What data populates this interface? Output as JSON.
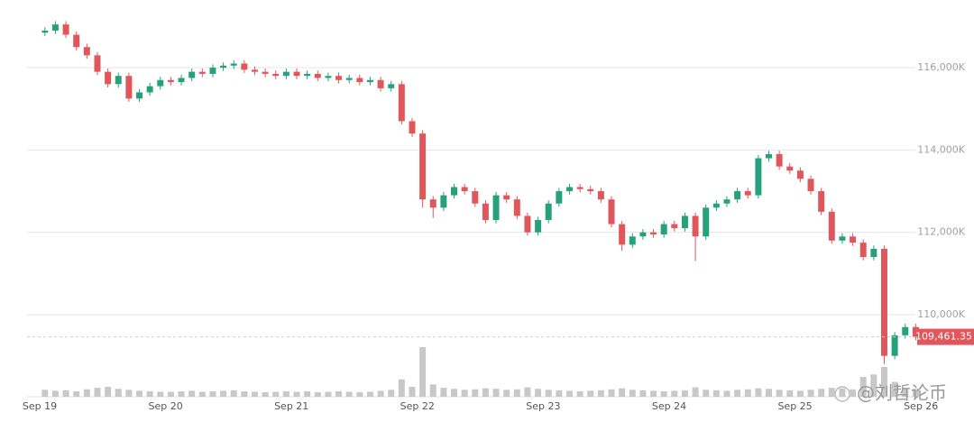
{
  "chart_data": {
    "type": "candlestick",
    "up_color": "#26a17b",
    "down_color": "#e0575b",
    "volume_color": "#c8c8c8",
    "xlim": [
      0,
      84.5
    ],
    "xticks": [
      {
        "value": 0,
        "label": "Sep 19"
      },
      {
        "value": 12,
        "label": "Sep 20"
      },
      {
        "value": 24,
        "label": "Sep 21"
      },
      {
        "value": 36,
        "label": "Sep 22"
      },
      {
        "value": 48,
        "label": "Sep 23"
      },
      {
        "value": 60,
        "label": "Sep 24"
      },
      {
        "value": 72,
        "label": "Sep 25"
      },
      {
        "value": 84,
        "label": "Sep 26"
      }
    ],
    "ylim": [
      107700,
      117600
    ],
    "yticks": [
      {
        "value": 110000,
        "label": "110,000K"
      },
      {
        "value": 112000,
        "label": "112,000K"
      },
      {
        "value": 114000,
        "label": "114,000K"
      },
      {
        "value": 116000,
        "label": "116,000K"
      }
    ],
    "grid": true,
    "last_price": {
      "value": 109461.35,
      "label": "109,461.35"
    },
    "open": [
      116850,
      116900,
      117050,
      116800,
      116500,
      116300,
      115900,
      115600,
      115800,
      115250,
      115400,
      115550,
      115700,
      115650,
      115750,
      115900,
      115850,
      116000,
      116050,
      116100,
      115950,
      115900,
      115850,
      115800,
      115900,
      115800,
      115850,
      115750,
      115800,
      115700,
      115750,
      115650,
      115700,
      115500,
      115600,
      114700,
      114400,
      112800,
      112600,
      112900,
      113100,
      113000,
      112700,
      112300,
      112900,
      112800,
      112400,
      112000,
      112300,
      112700,
      113000,
      113100,
      113050,
      113000,
      112800,
      112200,
      111700,
      111900,
      112000,
      111950,
      112200,
      112100,
      112400,
      111900,
      112600,
      112700,
      112800,
      113000,
      112900,
      113800,
      113900,
      113600,
      113500,
      113300,
      113000,
      112500,
      111800,
      111900,
      111750,
      111400,
      111600,
      109000,
      109500,
      109700
    ],
    "high": [
      116980,
      117130,
      117130,
      116880,
      116580,
      116380,
      115980,
      115880,
      115880,
      115480,
      115630,
      115780,
      115780,
      115830,
      115980,
      115980,
      116080,
      116130,
      116180,
      116180,
      116030,
      115980,
      115930,
      115980,
      115980,
      115930,
      115930,
      115880,
      115880,
      115830,
      115830,
      115780,
      115780,
      115680,
      115680,
      114780,
      114480,
      112880,
      112980,
      113180,
      113180,
      113080,
      112780,
      112980,
      112980,
      112880,
      112480,
      112380,
      112780,
      113080,
      113180,
      113180,
      113130,
      113080,
      112880,
      112280,
      111980,
      112080,
      112080,
      112280,
      112280,
      112480,
      112480,
      112680,
      112780,
      112880,
      113080,
      113080,
      113880,
      113980,
      113980,
      113680,
      113580,
      113380,
      113080,
      112580,
      111980,
      111980,
      111830,
      111680,
      111680,
      109580,
      109780,
      109780
    ],
    "low": [
      116770,
      116820,
      116720,
      116420,
      116220,
      115820,
      115520,
      115520,
      115170,
      115170,
      115320,
      115470,
      115570,
      115570,
      115670,
      115770,
      115770,
      115920,
      115970,
      115870,
      115820,
      115770,
      115720,
      115720,
      115720,
      115720,
      115670,
      115670,
      115620,
      115620,
      115570,
      115570,
      115420,
      115420,
      114620,
      114320,
      112600,
      112350,
      112520,
      112820,
      112920,
      112620,
      112220,
      112220,
      112720,
      112320,
      111920,
      111920,
      112220,
      112620,
      112920,
      112970,
      112920,
      112720,
      112120,
      111550,
      111620,
      111820,
      111870,
      111870,
      112020,
      112020,
      111300,
      111820,
      112520,
      112620,
      112720,
      112820,
      112820,
      113720,
      113520,
      113420,
      113220,
      112920,
      112420,
      111720,
      111720,
      111670,
      111320,
      111320,
      108800,
      108920,
      109420,
      109380
    ],
    "close": [
      116900,
      117050,
      116800,
      116500,
      116300,
      115900,
      115600,
      115800,
      115250,
      115400,
      115550,
      115700,
      115650,
      115750,
      115900,
      115850,
      116000,
      116050,
      116100,
      115950,
      115900,
      115850,
      115800,
      115900,
      115800,
      115850,
      115750,
      115800,
      115700,
      115750,
      115650,
      115700,
      115500,
      115600,
      114700,
      114400,
      112800,
      112600,
      112900,
      113100,
      113000,
      112700,
      112300,
      112900,
      112800,
      112400,
      112000,
      112300,
      112700,
      113000,
      113100,
      113050,
      113000,
      112800,
      112200,
      111700,
      111900,
      112000,
      111950,
      112200,
      112100,
      112400,
      111900,
      112600,
      112700,
      112800,
      113000,
      112900,
      113800,
      113900,
      113600,
      113500,
      113300,
      113000,
      112500,
      111800,
      111900,
      111750,
      111400,
      111600,
      109000,
      109500,
      109700,
      109461.35
    ],
    "vlim": [
      0,
      100
    ],
    "volume": [
      14,
      12,
      13,
      11,
      15,
      18,
      20,
      16,
      14,
      12,
      11,
      10,
      10,
      11,
      12,
      10,
      11,
      12,
      13,
      11,
      10,
      9,
      10,
      11,
      10,
      11,
      9,
      10,
      11,
      10,
      9,
      10,
      12,
      14,
      35,
      20,
      100,
      25,
      18,
      16,
      14,
      15,
      17,
      16,
      14,
      15,
      19,
      16,
      14,
      13,
      12,
      11,
      12,
      13,
      15,
      17,
      14,
      13,
      12,
      11,
      12,
      13,
      19,
      14,
      13,
      12,
      14,
      15,
      17,
      16,
      14,
      13,
      12,
      14,
      16,
      18,
      17,
      15,
      40,
      45,
      60,
      30,
      18,
      16
    ],
    "watermark": "@刘哲论币"
  }
}
